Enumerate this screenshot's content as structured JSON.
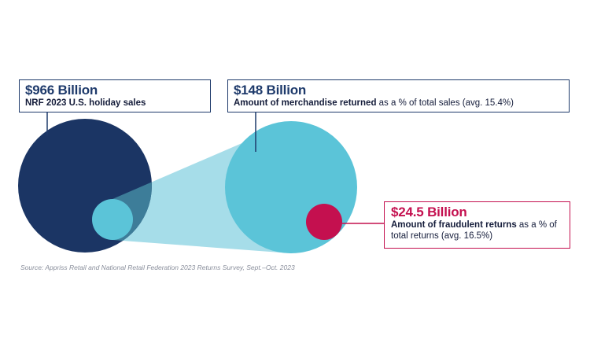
{
  "colors": {
    "navy": "#1e3a6b",
    "navy_dark": "#1b3564",
    "light_blue": "#5bc4d8",
    "cone_blue": "#a6dde9",
    "overlap_blue": "#3d7d99",
    "crimson": "#c4104f"
  },
  "callouts": {
    "total": {
      "amount": "$966 Billion",
      "description": "NRF 2023 U.S. holiday sales"
    },
    "returned": {
      "amount": "$148 Billion",
      "description_bold": "Amount of merchandise returned",
      "description_rest": " as a % of total sales (avg. 15.4%)"
    },
    "fraud": {
      "amount": "$24.5 Billion",
      "description_bold": "Amount of fraudulent returns",
      "description_rest": " as a % of total returns (avg. 16.5%)"
    }
  },
  "source": "Source: Appriss Retail and National Retail Federation 2023 Returns Survey, Sept.–Oct. 2023"
}
